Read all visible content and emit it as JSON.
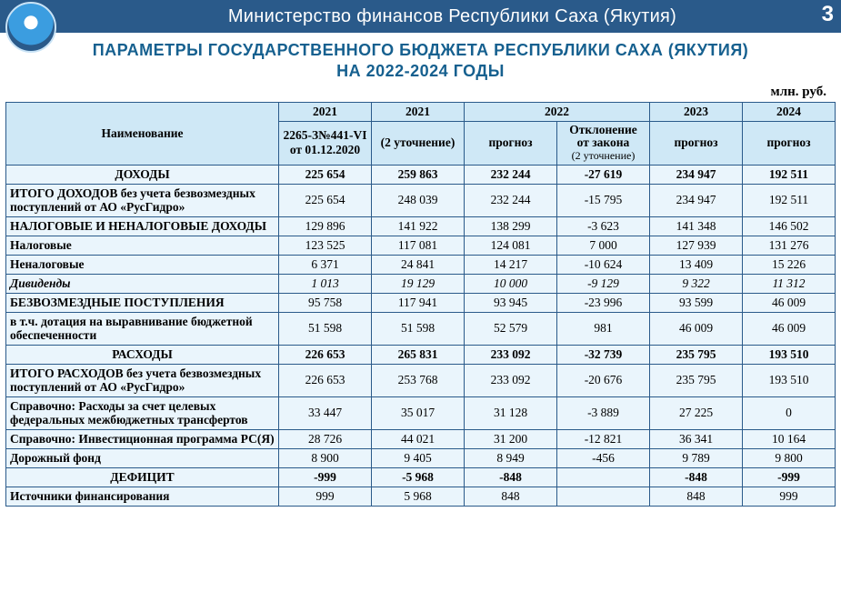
{
  "header": {
    "ministry": "Министерство финансов Республики Саха (Якутия)",
    "page_no": "3"
  },
  "title": {
    "line1": "ПАРАМЕТРЫ ГОСУДАРСТВЕННОГО БЮДЖЕТА РЕСПУБЛИКИ САХА (ЯКУТИЯ)",
    "line2": "НА 2022-2024 ГОДЫ"
  },
  "unit_label": "млн. руб.",
  "table": {
    "head": {
      "name": "Наименование",
      "y2021a": "2021",
      "y2021b": "2021",
      "y2022": "2022",
      "y2023": "2023",
      "y2024": "2024",
      "sub2021a": "2265-З№441-VI от 01.12.2020",
      "sub2021b": "(2 уточнение)",
      "sub2022a": "прогноз",
      "sub2022b_l1": "Отклонение",
      "sub2022b_l2": "от закона",
      "sub2022b_l3": "(2 уточнение)",
      "sub2023": "прогноз",
      "sub2024": "прогноз"
    },
    "rows": [
      {
        "style": "section",
        "center": true,
        "name": "ДОХОДЫ",
        "v": [
          "225 654",
          "259 863",
          "232 244",
          "-27 619",
          "234 947",
          "192 511"
        ]
      },
      {
        "style": "normal",
        "name": "ИТОГО ДОХОДОВ без учета безвозмездных поступлений от АО «РусГидро»",
        "v": [
          "225 654",
          "248 039",
          "232 244",
          "-15 795",
          "234 947",
          "192 511"
        ]
      },
      {
        "style": "normal",
        "name": "НАЛОГОВЫЕ И НЕНАЛОГОВЫЕ ДОХОДЫ",
        "v": [
          "129 896",
          "141 922",
          "138 299",
          "-3 623",
          "141 348",
          "146 502"
        ]
      },
      {
        "style": "normal",
        "name": "Налоговые",
        "v": [
          "123 525",
          "117 081",
          "124 081",
          "7 000",
          "127 939",
          "131 276"
        ]
      },
      {
        "style": "normal",
        "name": "Неналоговые",
        "v": [
          "6 371",
          "24 841",
          "14 217",
          "-10 624",
          "13 409",
          "15 226"
        ]
      },
      {
        "style": "italic",
        "name": "Дивиденды",
        "v": [
          "1 013",
          "19 129",
          "10 000",
          "-9 129",
          "9 322",
          "11 312"
        ]
      },
      {
        "style": "normal",
        "name": "БЕЗВОЗМЕЗДНЫЕ ПОСТУПЛЕНИЯ",
        "v": [
          "95 758",
          "117 941",
          "93 945",
          "-23 996",
          "93 599",
          "46 009"
        ]
      },
      {
        "style": "normal",
        "name": "в т.ч. дотация на выравнивание бюджетной обеспеченности",
        "v": [
          "51 598",
          "51 598",
          "52 579",
          "981",
          "46 009",
          "46 009"
        ]
      },
      {
        "style": "section",
        "center": true,
        "name": "РАСХОДЫ",
        "v": [
          "226 653",
          "265 831",
          "233 092",
          "-32 739",
          "235 795",
          "193 510"
        ]
      },
      {
        "style": "normal",
        "name": "ИТОГО РАСХОДОВ без учета безвозмездных поступлений от АО «РусГидро»",
        "v": [
          "226 653",
          "253 768",
          "233 092",
          "-20 676",
          "235 795",
          "193 510"
        ]
      },
      {
        "style": "normal",
        "name": "Справочно: Расходы за счет целевых федеральных межбюджетных трансфертов",
        "v": [
          "33 447",
          "35 017",
          "31 128",
          "-3 889",
          "27 225",
          "0"
        ]
      },
      {
        "style": "normal",
        "name": "Справочно: Инвестиционная программа РС(Я)",
        "v": [
          "28 726",
          "44 021",
          "31 200",
          "-12 821",
          "36 341",
          "10 164"
        ]
      },
      {
        "style": "normal",
        "name": "Дорожный фонд",
        "v": [
          "8 900",
          "9 405",
          "8 949",
          "-456",
          "9 789",
          "9 800"
        ]
      },
      {
        "style": "section",
        "center": true,
        "name": "ДЕФИЦИТ",
        "v": [
          "-999",
          "-5 968",
          "-848",
          "",
          "-848",
          "-999"
        ]
      },
      {
        "style": "normal",
        "name": "Источники финансирования",
        "v": [
          "999",
          "5 968",
          "848",
          "",
          "848",
          "999"
        ]
      }
    ]
  },
  "colors": {
    "header_bg": "#2a5a8a",
    "title_color": "#16608f",
    "th_bg": "#cfe8f6",
    "td_bg": "#eaf5fc",
    "border": "#2a5a8a"
  }
}
